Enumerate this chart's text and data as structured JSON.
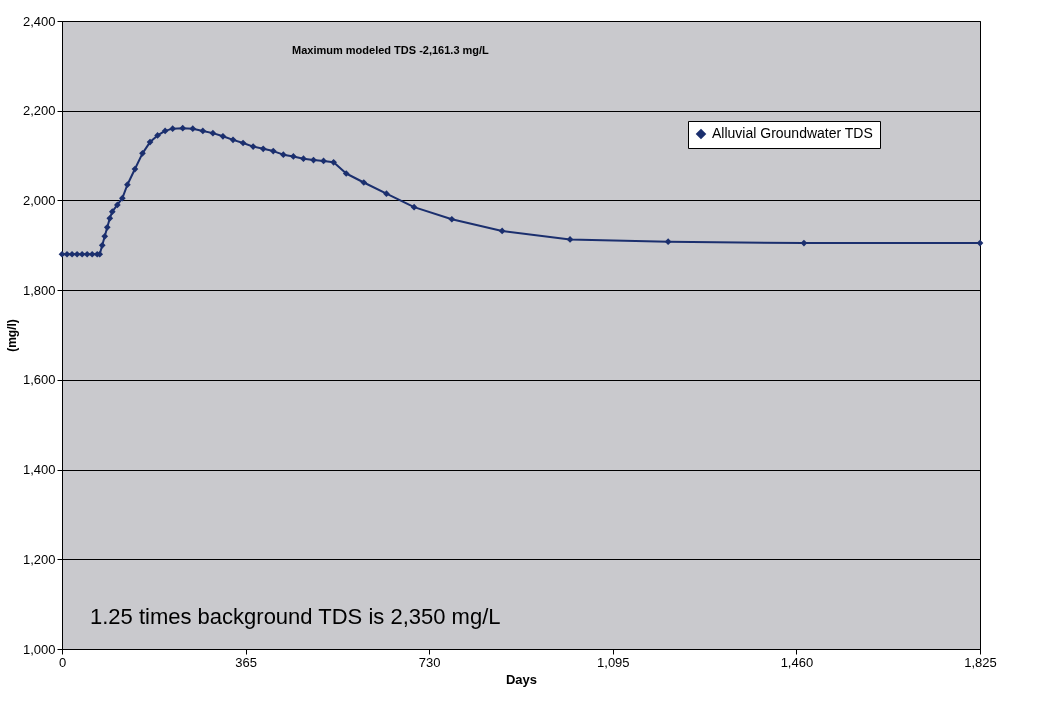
{
  "chart_data": {
    "type": "line",
    "xlabel": "Days",
    "ylabel": "(mg/l)",
    "x": [
      0,
      10,
      20,
      30,
      40,
      50,
      60,
      70,
      75,
      80,
      85,
      90,
      95,
      100,
      110,
      120,
      130,
      145,
      160,
      175,
      190,
      205,
      220,
      240,
      260,
      280,
      300,
      320,
      340,
      360,
      380,
      400,
      420,
      440,
      460,
      480,
      500,
      520,
      540,
      565,
      600,
      645,
      700,
      775,
      875,
      1010,
      1205,
      1475,
      1825
    ],
    "series": [
      {
        "name": "Alluvial Groundwater TDS",
        "color": "#1b2f6e",
        "values": [
          1880,
          1880,
          1880,
          1880,
          1880,
          1880,
          1880,
          1880,
          1880,
          1900,
          1920,
          1940,
          1960,
          1975,
          1990,
          2005,
          2035,
          2070,
          2105,
          2130,
          2145,
          2155,
          2160,
          2161,
          2160,
          2155,
          2150,
          2143,
          2135,
          2128,
          2120,
          2115,
          2110,
          2102,
          2098,
          2093,
          2090,
          2088,
          2085,
          2060,
          2040,
          2015,
          1985,
          1958,
          1932,
          1913,
          1908,
          1905,
          1905
        ]
      }
    ],
    "xlim": [
      0,
      1825
    ],
    "xticks": [
      {
        "value": 0,
        "label": "0"
      },
      {
        "value": 365,
        "label": "365"
      },
      {
        "value": 730,
        "label": "730"
      },
      {
        "value": 1095,
        "label": "1,095"
      },
      {
        "value": 1460,
        "label": "1,460"
      },
      {
        "value": 1825,
        "label": "1,825"
      }
    ],
    "ylim": [
      1000,
      2400
    ],
    "yticks": [
      {
        "value": 1000,
        "label": "1,000"
      },
      {
        "value": 1200,
        "label": "1,200"
      },
      {
        "value": 1400,
        "label": "1,400"
      },
      {
        "value": 1600,
        "label": "1,600"
      },
      {
        "value": 1800,
        "label": "1,800"
      },
      {
        "value": 2000,
        "label": "2,000"
      },
      {
        "value": 2200,
        "label": "2,200"
      },
      {
        "value": 2400,
        "label": "2,400"
      }
    ],
    "grid": "y",
    "legend": "top right",
    "marker": "diamond",
    "line_style": "solid",
    "annotations": [
      "Maximum modeled TDS -2,161.3 mg/L",
      "1.25 times background TDS is 2,350 mg/L"
    ]
  }
}
